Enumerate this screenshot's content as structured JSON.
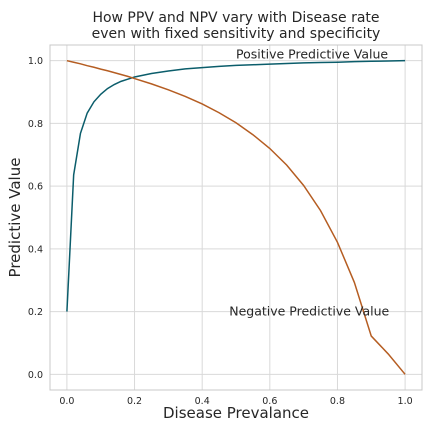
{
  "chart_data": {
    "type": "line",
    "title": [
      "How PPV and NPV vary with Disease rate",
      "even with fixed sensitivity and specificity"
    ],
    "xlabel": "Disease Prevalance",
    "ylabel": "Predictive Value",
    "xlim": [
      -0.05,
      1.05
    ],
    "ylim": [
      -0.05,
      1.05
    ],
    "xticks": [
      0.0,
      0.2,
      0.4,
      0.6,
      0.8,
      1.0
    ],
    "xtick_labels": [
      "0.0",
      "0.2",
      "0.4",
      "0.6",
      "0.8",
      "1.0"
    ],
    "yticks": [
      0.0,
      0.2,
      0.4,
      0.6,
      0.8,
      1.0
    ],
    "ytick_labels": [
      "0.0",
      "0.2",
      "0.4",
      "0.6",
      "0.8",
      "1.0"
    ],
    "grid": true,
    "legend": "none",
    "x": [
      0.0,
      0.02,
      0.04,
      0.06,
      0.08,
      0.1,
      0.12,
      0.14,
      0.16,
      0.18,
      0.2,
      0.25,
      0.3,
      0.35,
      0.4,
      0.45,
      0.5,
      0.55,
      0.6,
      0.65,
      0.7,
      0.75,
      0.8,
      0.85,
      0.9,
      0.95,
      1.0
    ],
    "series": [
      {
        "color": "#0b5d6b",
        "values": [
          0.2,
          0.636,
          0.768,
          0.833,
          0.869,
          0.893,
          0.911,
          0.924,
          0.934,
          0.941,
          0.948,
          0.959,
          0.967,
          0.974,
          0.978,
          0.982,
          0.985,
          0.987,
          0.989,
          0.991,
          0.993,
          0.994,
          0.995,
          0.997,
          0.998,
          0.999,
          1.0
        ]
      },
      {
        "color": "#b55d22",
        "values": [
          1.0,
          0.995,
          0.99,
          0.984,
          0.979,
          0.973,
          0.968,
          0.962,
          0.956,
          0.95,
          0.943,
          0.926,
          0.907,
          0.886,
          0.862,
          0.834,
          0.802,
          0.764,
          0.72,
          0.667,
          0.602,
          0.522,
          0.421,
          0.293,
          0.122,
          0.065,
          0.0
        ]
      }
    ],
    "annotations": [
      {
        "text": "Positive Predictive Value",
        "x": 0.5,
        "y": 1.02
      },
      {
        "text": "Negative Predictive Value",
        "x": 0.48,
        "y": 0.2
      }
    ]
  }
}
